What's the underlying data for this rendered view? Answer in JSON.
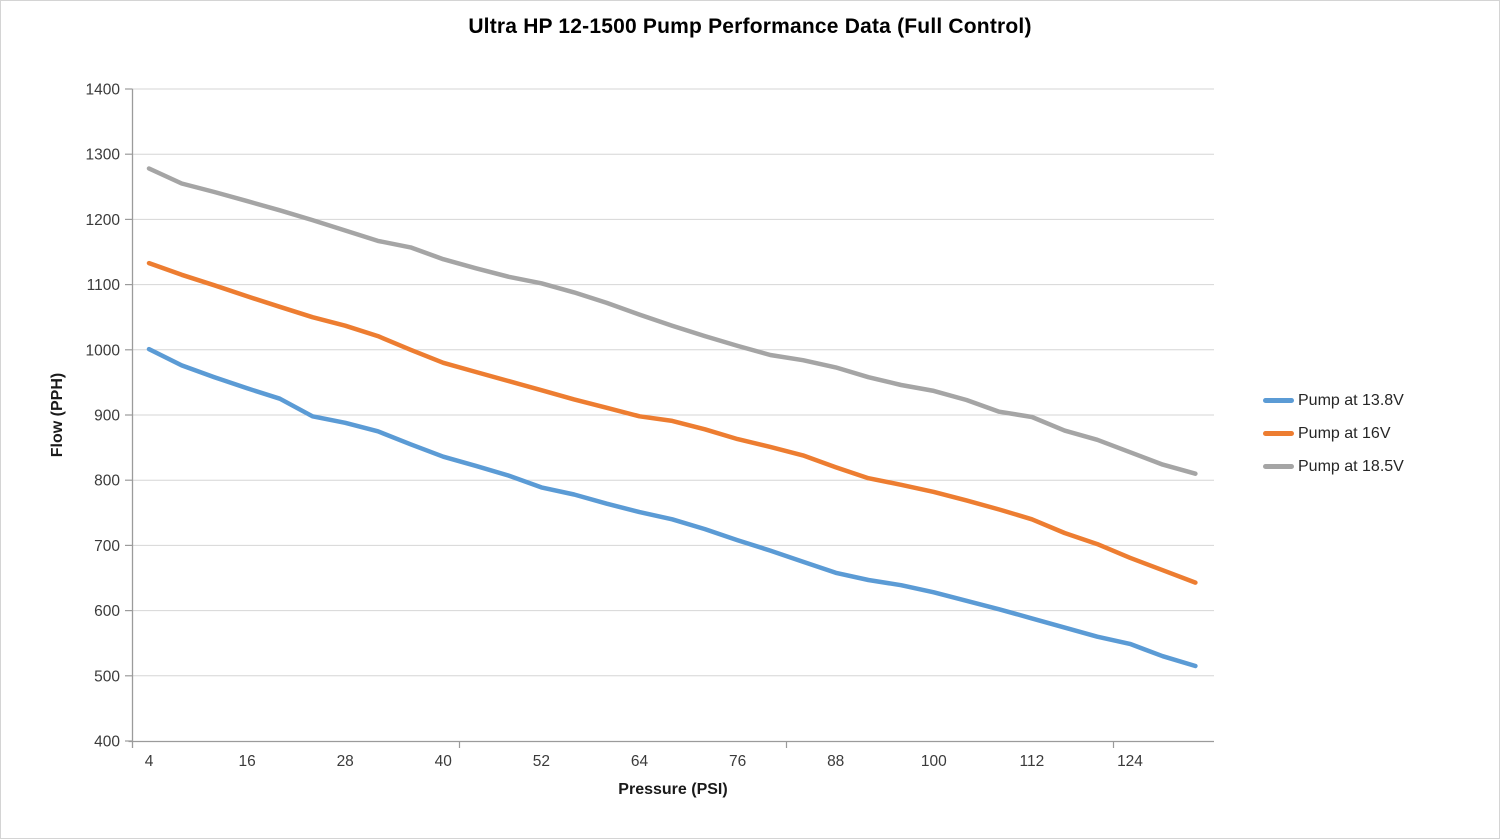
{
  "chart_data": {
    "type": "line",
    "title": "Ultra HP 12-1500 Pump Performance Data (Full Control)",
    "xlabel": "Pressure (PSI)",
    "ylabel": "Flow (PPH)",
    "x": [
      4,
      8,
      12,
      16,
      20,
      24,
      28,
      32,
      36,
      40,
      44,
      48,
      52,
      56,
      60,
      64,
      68,
      72,
      76,
      80,
      84,
      88,
      92,
      96,
      100,
      104,
      108,
      112,
      116,
      120,
      124,
      128,
      132
    ],
    "x_tick_labels": [
      4,
      16,
      28,
      40,
      52,
      64,
      76,
      88,
      100,
      112,
      124
    ],
    "y_ticks": [
      400,
      500,
      600,
      700,
      800,
      900,
      1000,
      1100,
      1200,
      1300,
      1400
    ],
    "ylim": [
      400,
      1400
    ],
    "grid": "horizontal-major",
    "legend_position": "right",
    "axis_color": "#9b9b9b",
    "gridline_color": "#d6d6d6",
    "tick_label_color": "#3b3b3b",
    "series": [
      {
        "name": "Pump at 13.8V",
        "color": "#5b9bd5",
        "values": [
          1001,
          976,
          958,
          941,
          925,
          898,
          888,
          875,
          855,
          836,
          822,
          807,
          789,
          778,
          764,
          751,
          740,
          725,
          708,
          692,
          675,
          658,
          647,
          639,
          628,
          615,
          602,
          588,
          574,
          560,
          549,
          530,
          515
        ]
      },
      {
        "name": "Pump at 16V",
        "color": "#ed7d31",
        "values": [
          1133,
          1115,
          1099,
          1082,
          1066,
          1050,
          1037,
          1021,
          1000,
          980,
          966,
          952,
          938,
          924,
          911,
          898,
          891,
          878,
          863,
          851,
          838,
          820,
          803,
          793,
          782,
          769,
          755,
          740,
          719,
          702,
          681,
          662,
          643
        ]
      },
      {
        "name": "Pump at 18.5V",
        "color": "#a5a5a5",
        "values": [
          1278,
          1255,
          1242,
          1228,
          1214,
          1199,
          1183,
          1167,
          1157,
          1139,
          1125,
          1112,
          1102,
          1088,
          1072,
          1054,
          1037,
          1021,
          1006,
          992,
          984,
          973,
          958,
          946,
          937,
          923,
          905,
          897,
          876,
          862,
          843,
          824,
          810
        ]
      }
    ]
  }
}
